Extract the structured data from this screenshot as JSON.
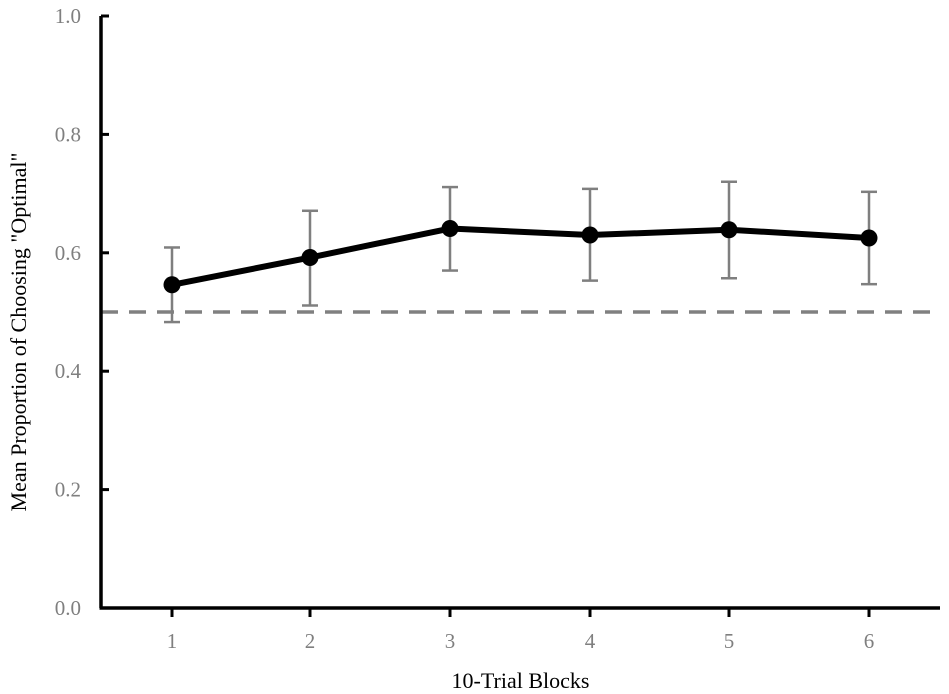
{
  "chart_data": {
    "type": "line",
    "xlabel": "10-Trial Blocks",
    "ylabel": "Mean Proportion of Choosing \"Optimal\"",
    "categories": [
      "1",
      "2",
      "3",
      "4",
      "5",
      "6"
    ],
    "yticks": [
      "0.0",
      "0.2",
      "0.4",
      "0.6",
      "0.8",
      "1.0"
    ],
    "ylim": [
      0,
      1
    ],
    "series": [
      {
        "values": [
          0.546,
          0.592,
          0.641,
          0.63,
          0.639,
          0.625
        ],
        "error_upper": [
          0.609,
          0.671,
          0.711,
          0.708,
          0.72,
          0.703
        ],
        "error_lower": [
          0.483,
          0.511,
          0.57,
          0.553,
          0.557,
          0.547
        ]
      }
    ],
    "reference_line": {
      "value": 0.5,
      "style": "dashed"
    },
    "grid": false,
    "legend": "none",
    "colors": {
      "line": "#000000",
      "error_bars": "#7f7f7f",
      "reference": "#808080",
      "tick_labels": "#7f7f7f"
    }
  }
}
